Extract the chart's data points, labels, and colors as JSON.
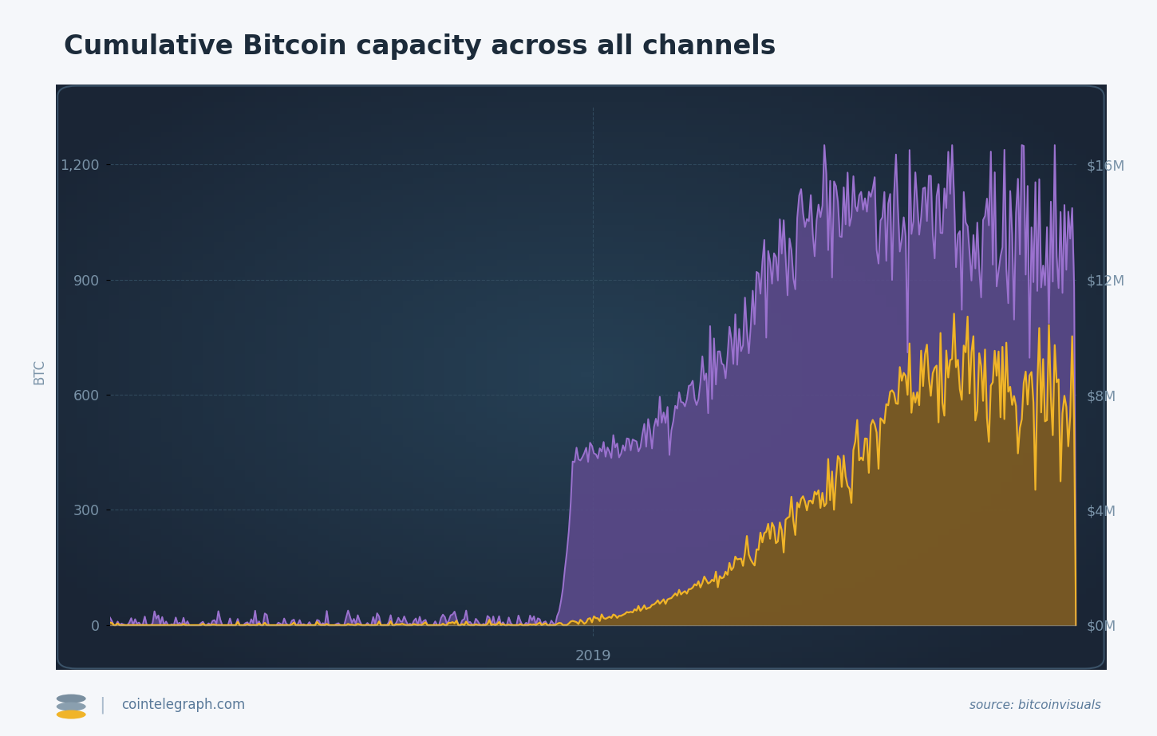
{
  "title": "Cumulative Bitcoin capacity across all channels",
  "title_color": "#1c2b3a",
  "title_fontsize": 24,
  "title_fontweight": "bold",
  "chart_bg_dark": "#1a2535",
  "chart_bg_light": "#263a4e",
  "outer_bg": "#f5f7fa",
  "left_ylabel": "BTC",
  "right_ylabel_ticks": [
    "$0M",
    "$4M",
    "$8M",
    "$12M",
    "$16M"
  ],
  "yticks_left": [
    0,
    300,
    600,
    900,
    1200
  ],
  "ytick_color": "#7a93a8",
  "grid_color": "#334d61",
  "purple_line_color": "#9b72cf",
  "purple_fill_color": "#5b4a8a",
  "gold_line_color": "#f0b429",
  "gold_fill_color": "#7a5a1a",
  "border_color": "#3a5268",
  "footer_left": "cointelegraph.com",
  "footer_right": "source: bitcoinvisuals",
  "footer_color": "#5a7a9a",
  "separator_color": "#aabbcc"
}
